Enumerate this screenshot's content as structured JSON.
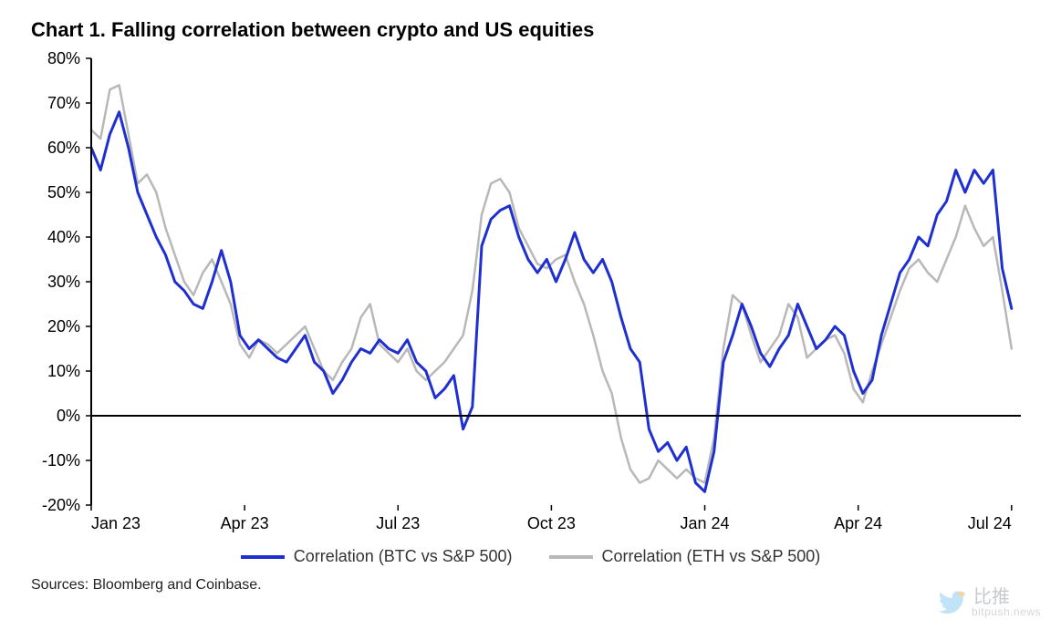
{
  "title": "Chart 1. Falling correlation between crypto and US equities",
  "sources": "Sources: Bloomberg and Coinbase.",
  "watermark": {
    "cn": "比推",
    "url": "bitpush.news"
  },
  "chart": {
    "type": "line",
    "background_color": "#ffffff",
    "grid_color": "#000000",
    "axis_color": "#000000",
    "title_fontsize": 22,
    "label_fontsize": 18,
    "tick_fontsize": 18,
    "line_width": 3,
    "y": {
      "min": -20,
      "max": 80,
      "tick_step": 10,
      "suffix": "%",
      "ticks": [
        -20,
        -10,
        0,
        10,
        20,
        30,
        40,
        50,
        60,
        70,
        80
      ]
    },
    "x": {
      "min": 0,
      "max": 100,
      "ticks": [
        {
          "pos": 0,
          "label": "Jan 23"
        },
        {
          "pos": 16.5,
          "label": "Apr 23"
        },
        {
          "pos": 33,
          "label": "Jul 23"
        },
        {
          "pos": 49.5,
          "label": "Oct 23"
        },
        {
          "pos": 66,
          "label": "Jan 24"
        },
        {
          "pos": 82.5,
          "label": "Apr 24"
        },
        {
          "pos": 99,
          "label": "Jul 24"
        }
      ]
    },
    "legend": [
      {
        "label": "Correlation (BTC vs S&P 500)",
        "color": "#2030d0"
      },
      {
        "label": "Correlation (ETH vs S&P 500)",
        "color": "#b8b8b8"
      }
    ],
    "series": [
      {
        "name": "btc_sp500",
        "color": "#2030d0",
        "width": 3,
        "points": [
          [
            0,
            60
          ],
          [
            1,
            55
          ],
          [
            2,
            63
          ],
          [
            3,
            68
          ],
          [
            4,
            60
          ],
          [
            5,
            50
          ],
          [
            6,
            45
          ],
          [
            7,
            40
          ],
          [
            8,
            36
          ],
          [
            9,
            30
          ],
          [
            10,
            28
          ],
          [
            11,
            25
          ],
          [
            12,
            24
          ],
          [
            13,
            30
          ],
          [
            14,
            37
          ],
          [
            15,
            30
          ],
          [
            16,
            18
          ],
          [
            17,
            15
          ],
          [
            18,
            17
          ],
          [
            19,
            15
          ],
          [
            20,
            13
          ],
          [
            21,
            12
          ],
          [
            22,
            15
          ],
          [
            23,
            18
          ],
          [
            24,
            12
          ],
          [
            25,
            10
          ],
          [
            26,
            5
          ],
          [
            27,
            8
          ],
          [
            28,
            12
          ],
          [
            29,
            15
          ],
          [
            30,
            14
          ],
          [
            31,
            17
          ],
          [
            32,
            15
          ],
          [
            33,
            14
          ],
          [
            34,
            17
          ],
          [
            35,
            12
          ],
          [
            36,
            10
          ],
          [
            37,
            4
          ],
          [
            38,
            6
          ],
          [
            39,
            9
          ],
          [
            40,
            -3
          ],
          [
            41,
            2
          ],
          [
            42,
            38
          ],
          [
            43,
            44
          ],
          [
            44,
            46
          ],
          [
            45,
            47
          ],
          [
            46,
            40
          ],
          [
            47,
            35
          ],
          [
            48,
            32
          ],
          [
            49,
            35
          ],
          [
            50,
            30
          ],
          [
            51,
            35
          ],
          [
            52,
            41
          ],
          [
            53,
            35
          ],
          [
            54,
            32
          ],
          [
            55,
            35
          ],
          [
            56,
            30
          ],
          [
            57,
            22
          ],
          [
            58,
            15
          ],
          [
            59,
            12
          ],
          [
            60,
            -3
          ],
          [
            61,
            -8
          ],
          [
            62,
            -6
          ],
          [
            63,
            -10
          ],
          [
            64,
            -7
          ],
          [
            65,
            -15
          ],
          [
            66,
            -17
          ],
          [
            67,
            -8
          ],
          [
            68,
            12
          ],
          [
            69,
            18
          ],
          [
            70,
            25
          ],
          [
            71,
            20
          ],
          [
            72,
            14
          ],
          [
            73,
            11
          ],
          [
            74,
            15
          ],
          [
            75,
            18
          ],
          [
            76,
            25
          ],
          [
            77,
            20
          ],
          [
            78,
            15
          ],
          [
            79,
            17
          ],
          [
            80,
            20
          ],
          [
            81,
            18
          ],
          [
            82,
            10
          ],
          [
            83,
            5
          ],
          [
            84,
            8
          ],
          [
            85,
            18
          ],
          [
            86,
            25
          ],
          [
            87,
            32
          ],
          [
            88,
            35
          ],
          [
            89,
            40
          ],
          [
            90,
            38
          ],
          [
            91,
            45
          ],
          [
            92,
            48
          ],
          [
            93,
            55
          ],
          [
            94,
            50
          ],
          [
            95,
            55
          ],
          [
            96,
            52
          ],
          [
            97,
            55
          ],
          [
            98,
            33
          ],
          [
            99,
            24
          ]
        ]
      },
      {
        "name": "eth_sp500",
        "color": "#b8b8b8",
        "width": 2.5,
        "points": [
          [
            0,
            64
          ],
          [
            1,
            62
          ],
          [
            2,
            73
          ],
          [
            3,
            74
          ],
          [
            4,
            63
          ],
          [
            5,
            52
          ],
          [
            6,
            54
          ],
          [
            7,
            50
          ],
          [
            8,
            42
          ],
          [
            9,
            36
          ],
          [
            10,
            30
          ],
          [
            11,
            27
          ],
          [
            12,
            32
          ],
          [
            13,
            35
          ],
          [
            14,
            30
          ],
          [
            15,
            25
          ],
          [
            16,
            16
          ],
          [
            17,
            13
          ],
          [
            18,
            17
          ],
          [
            19,
            16
          ],
          [
            20,
            14
          ],
          [
            21,
            16
          ],
          [
            22,
            18
          ],
          [
            23,
            20
          ],
          [
            24,
            15
          ],
          [
            25,
            10
          ],
          [
            26,
            8
          ],
          [
            27,
            12
          ],
          [
            28,
            15
          ],
          [
            29,
            22
          ],
          [
            30,
            25
          ],
          [
            31,
            16
          ],
          [
            32,
            14
          ],
          [
            33,
            12
          ],
          [
            34,
            15
          ],
          [
            35,
            10
          ],
          [
            36,
            8
          ],
          [
            37,
            10
          ],
          [
            38,
            12
          ],
          [
            39,
            15
          ],
          [
            40,
            18
          ],
          [
            41,
            28
          ],
          [
            42,
            45
          ],
          [
            43,
            52
          ],
          [
            44,
            53
          ],
          [
            45,
            50
          ],
          [
            46,
            42
          ],
          [
            47,
            38
          ],
          [
            48,
            34
          ],
          [
            49,
            33
          ],
          [
            50,
            35
          ],
          [
            51,
            36
          ],
          [
            52,
            30
          ],
          [
            53,
            25
          ],
          [
            54,
            18
          ],
          [
            55,
            10
          ],
          [
            56,
            5
          ],
          [
            57,
            -5
          ],
          [
            58,
            -12
          ],
          [
            59,
            -15
          ],
          [
            60,
            -14
          ],
          [
            61,
            -10
          ],
          [
            62,
            -12
          ],
          [
            63,
            -14
          ],
          [
            64,
            -12
          ],
          [
            65,
            -14
          ],
          [
            66,
            -15
          ],
          [
            67,
            -5
          ],
          [
            68,
            15
          ],
          [
            69,
            27
          ],
          [
            70,
            25
          ],
          [
            71,
            18
          ],
          [
            72,
            12
          ],
          [
            73,
            15
          ],
          [
            74,
            18
          ],
          [
            75,
            25
          ],
          [
            76,
            22
          ],
          [
            77,
            13
          ],
          [
            78,
            15
          ],
          [
            79,
            17
          ],
          [
            80,
            18
          ],
          [
            81,
            14
          ],
          [
            82,
            6
          ],
          [
            83,
            3
          ],
          [
            84,
            10
          ],
          [
            85,
            16
          ],
          [
            86,
            22
          ],
          [
            87,
            28
          ],
          [
            88,
            33
          ],
          [
            89,
            35
          ],
          [
            90,
            32
          ],
          [
            91,
            30
          ],
          [
            92,
            35
          ],
          [
            93,
            40
          ],
          [
            94,
            47
          ],
          [
            95,
            42
          ],
          [
            96,
            38
          ],
          [
            97,
            40
          ],
          [
            98,
            28
          ],
          [
            99,
            15
          ]
        ]
      }
    ]
  }
}
